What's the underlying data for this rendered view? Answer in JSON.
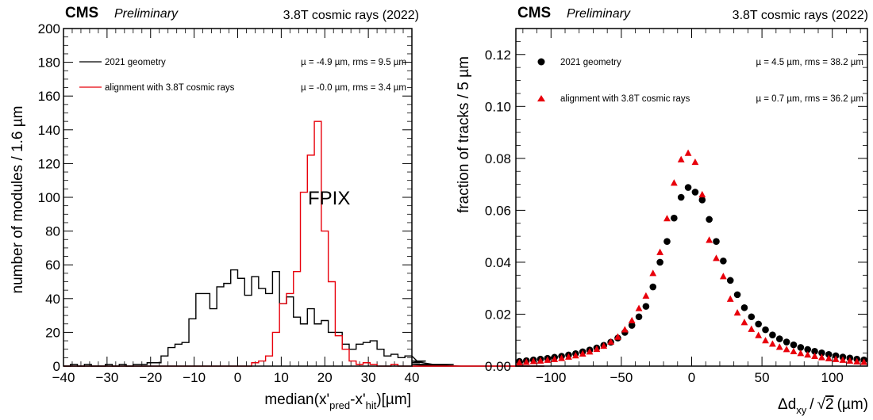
{
  "chart_data": [
    {
      "type": "histogram",
      "header": {
        "experiment": "CMS",
        "status": "Preliminary",
        "conditions": "3.8T cosmic rays (2022)"
      },
      "xlabel": "median(x'pred-x'hit)[µm]",
      "xlabel_parts": {
        "main": "median(x'",
        "sub1": "pred",
        "mid": "-x'",
        "sub2": "hit",
        "end": ")[µm]"
      },
      "ylabel": "number of modules / 1.6 µm",
      "xlim": [
        -40,
        40
      ],
      "ylim": [
        0,
        200
      ],
      "x_ticks": [
        -40,
        -30,
        -20,
        -10,
        0,
        10,
        20,
        30,
        40
      ],
      "y_ticks": [
        0,
        20,
        40,
        60,
        80,
        100,
        120,
        140,
        160,
        180,
        200
      ],
      "annotation": "FPIX",
      "bin_width": 1.6,
      "x_start": -40,
      "series": [
        {
          "name": "2021 geometry",
          "stats": "µ = -4.9 µm,  rms = 9.5 µm",
          "color": "#000000",
          "values": [
            0,
            1,
            0,
            1,
            0,
            0,
            1,
            0,
            1,
            0,
            1,
            1,
            2,
            2,
            6,
            11,
            13,
            14,
            28,
            43,
            43,
            34,
            47,
            49,
            57,
            52,
            42,
            53,
            46,
            43,
            56,
            37,
            41,
            29,
            25,
            34,
            25,
            27,
            20,
            20,
            13,
            10,
            13,
            14,
            15,
            10,
            6,
            7,
            5,
            6,
            6,
            2,
            3,
            1,
            0,
            0,
            1,
            0,
            0,
            0,
            0,
            0,
            0,
            0,
            0,
            0,
            0,
            0,
            0,
            0
          ]
        },
        {
          "name": "alignment with 3.8T cosmic rays",
          "stats": "µ = -0.0 µm,  rms = 3.4 µm",
          "color": "#e8000b",
          "values": [
            0,
            0,
            0,
            0,
            0,
            0,
            0,
            0,
            0,
            0,
            0,
            0,
            0,
            0,
            0,
            0,
            0,
            0,
            0,
            0,
            0,
            0,
            0,
            0,
            0,
            0,
            0,
            2,
            3,
            6,
            20,
            37,
            43,
            56,
            103,
            125,
            145,
            80,
            50,
            18,
            10,
            3,
            1,
            2,
            1,
            0,
            0,
            1,
            0,
            0,
            0,
            0,
            0,
            0,
            0,
            0,
            0,
            0,
            0,
            0,
            0,
            0,
            0,
            0,
            0,
            0,
            0,
            0,
            0,
            0
          ]
        }
      ]
    },
    {
      "type": "scatter",
      "header": {
        "experiment": "CMS",
        "status": "Preliminary",
        "conditions": "3.8T cosmic rays (2022)"
      },
      "xlabel": "Δdxy / √2 (µm)",
      "xlabel_parts": {
        "pre": "Δd",
        "sub": "xy",
        "slash": "/",
        "sqrt": "√",
        "num": "2",
        "post": "(µm)"
      },
      "ylabel": "fraction of tracks / 5 µm",
      "xlim": [
        -125,
        125
      ],
      "ylim": [
        0,
        0.13
      ],
      "x_ticks": [
        -100,
        -50,
        0,
        50,
        100
      ],
      "y_ticks": [
        "0.00",
        "0.02",
        "0.04",
        "0.06",
        "0.08",
        "0.10",
        "0.12"
      ],
      "x": [
        -122.5,
        -117.5,
        -112.5,
        -107.5,
        -102.5,
        -97.5,
        -92.5,
        -87.5,
        -82.5,
        -77.5,
        -72.5,
        -67.5,
        -62.5,
        -57.5,
        -52.5,
        -47.5,
        -42.5,
        -37.5,
        -32.5,
        -27.5,
        -22.5,
        -17.5,
        -12.5,
        -7.5,
        -2.5,
        2.5,
        7.5,
        12.5,
        17.5,
        22.5,
        27.5,
        32.5,
        37.5,
        42.5,
        47.5,
        52.5,
        57.5,
        62.5,
        67.5,
        72.5,
        77.5,
        82.5,
        87.5,
        92.5,
        97.5,
        102.5,
        107.5,
        112.5,
        117.5,
        122.5
      ],
      "series": [
        {
          "name": "2021 geometry",
          "stats": "µ = 4.5 µm, rms = 38.2 µm",
          "marker": "circle",
          "color": "#000000",
          "values": [
            0.0018,
            0.0021,
            0.0024,
            0.0027,
            0.003,
            0.0034,
            0.0038,
            0.0043,
            0.0048,
            0.0055,
            0.0062,
            0.007,
            0.008,
            0.0092,
            0.0108,
            0.013,
            0.0157,
            0.019,
            0.023,
            0.0305,
            0.04,
            0.048,
            0.057,
            0.065,
            0.0688,
            0.067,
            0.064,
            0.0565,
            0.048,
            0.0405,
            0.033,
            0.0275,
            0.0225,
            0.019,
            0.0162,
            0.014,
            0.012,
            0.0105,
            0.0093,
            0.0082,
            0.0072,
            0.0064,
            0.0057,
            0.0051,
            0.0045,
            0.004,
            0.0035,
            0.0031,
            0.0027,
            0.0024
          ]
        },
        {
          "name": "alignment with 3.8T cosmic rays",
          "stats": "µ = 0.7 µm, rms = 36.2 µm",
          "marker": "triangle",
          "color": "#e8000b",
          "values": [
            0.0013,
            0.0015,
            0.0018,
            0.002,
            0.0023,
            0.0026,
            0.003,
            0.0035,
            0.004,
            0.0047,
            0.0055,
            0.0065,
            0.0077,
            0.0093,
            0.0112,
            0.014,
            0.0175,
            0.0222,
            0.027,
            0.0357,
            0.0438,
            0.0568,
            0.0705,
            0.0795,
            0.082,
            0.0785,
            0.066,
            0.0485,
            0.0415,
            0.0345,
            0.0258,
            0.0205,
            0.0168,
            0.0142,
            0.0118,
            0.0098,
            0.0085,
            0.0073,
            0.0064,
            0.0056,
            0.0049,
            0.0043,
            0.0038,
            0.0033,
            0.0029,
            0.0026,
            0.0023,
            0.002,
            0.0017,
            0.0015
          ]
        }
      ]
    }
  ]
}
